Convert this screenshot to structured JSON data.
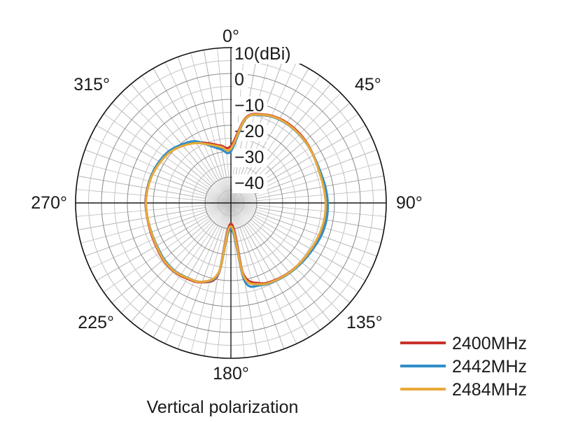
{
  "chart_data": {
    "type": "polar",
    "title": "",
    "caption": "Vertical polarization",
    "radial_unit": "(dBi)",
    "radial_range": [
      -50,
      10
    ],
    "radial_ticks": [
      {
        "value": 10,
        "label": "10"
      },
      {
        "value": 0,
        "label": "0"
      },
      {
        "value": -10,
        "label": "−10"
      },
      {
        "value": -20,
        "label": "−20"
      },
      {
        "value": -30,
        "label": "−30"
      },
      {
        "value": -40,
        "label": "−40"
      }
    ],
    "angle_direction": "clockwise",
    "angle_zero": "top",
    "angle_grid_step_deg": 5,
    "angle_labels": [
      {
        "angle": 0,
        "label": "0°"
      },
      {
        "angle": 45,
        "label": "45°"
      },
      {
        "angle": 90,
        "label": "90°"
      },
      {
        "angle": 135,
        "label": "135°"
      },
      {
        "angle": 180,
        "label": "180°"
      },
      {
        "angle": 225,
        "label": "225°"
      },
      {
        "angle": 270,
        "label": "270°"
      },
      {
        "angle": 315,
        "label": "315°"
      }
    ],
    "legend_position": "bottom-right",
    "angles": [
      0,
      10,
      20,
      30,
      40,
      50,
      60,
      70,
      80,
      90,
      100,
      110,
      120,
      130,
      140,
      150,
      160,
      170,
      180,
      190,
      200,
      210,
      220,
      230,
      240,
      250,
      260,
      270,
      280,
      290,
      300,
      310,
      320,
      330,
      340,
      350
    ],
    "series": [
      {
        "name": "2400MHz",
        "color": "#c8322a",
        "values": [
          -28,
          -16.5,
          -13.6,
          -12.4,
          -12.2,
          -12.5,
          -13.2,
          -13.8,
          -13.6,
          -13.2,
          -13.2,
          -13.6,
          -14.2,
          -14.6,
          -15,
          -15.7,
          -17,
          -22,
          -42,
          -22,
          -17.4,
          -16.2,
          -15.6,
          -15.8,
          -16.6,
          -17,
          -17.2,
          -17,
          -17.2,
          -17.6,
          -18.3,
          -19.3,
          -21,
          -23,
          -25.5,
          -27.5
        ]
      },
      {
        "name": "2442MHz",
        "color": "#2f8fc9",
        "values": [
          -30,
          -17,
          -14,
          -12.8,
          -12.6,
          -12.8,
          -13.2,
          -13.4,
          -13,
          -12.6,
          -12.5,
          -12.9,
          -13.7,
          -14.2,
          -14.7,
          -15.3,
          -16.2,
          -19.3,
          -40,
          -22.3,
          -17.6,
          -16.6,
          -16,
          -16.3,
          -17,
          -17.3,
          -17.3,
          -17.1,
          -17.3,
          -17.5,
          -18,
          -18.8,
          -20.5,
          -22.5,
          -26.5,
          -29
        ]
      },
      {
        "name": "2484MHz",
        "color": "#e8a93a",
        "values": [
          -29,
          -16.8,
          -13.8,
          -12.6,
          -12.5,
          -12.7,
          -13.3,
          -13.8,
          -13.7,
          -13.4,
          -13.4,
          -13.8,
          -14.3,
          -14.6,
          -14.9,
          -15.5,
          -16.6,
          -21,
          -41,
          -22.8,
          -17.6,
          -16.5,
          -15.8,
          -16,
          -16.8,
          -17.2,
          -17.3,
          -17.2,
          -17.4,
          -17.8,
          -18.5,
          -19.4,
          -21.2,
          -23.3,
          -26,
          -28
        ]
      }
    ]
  }
}
